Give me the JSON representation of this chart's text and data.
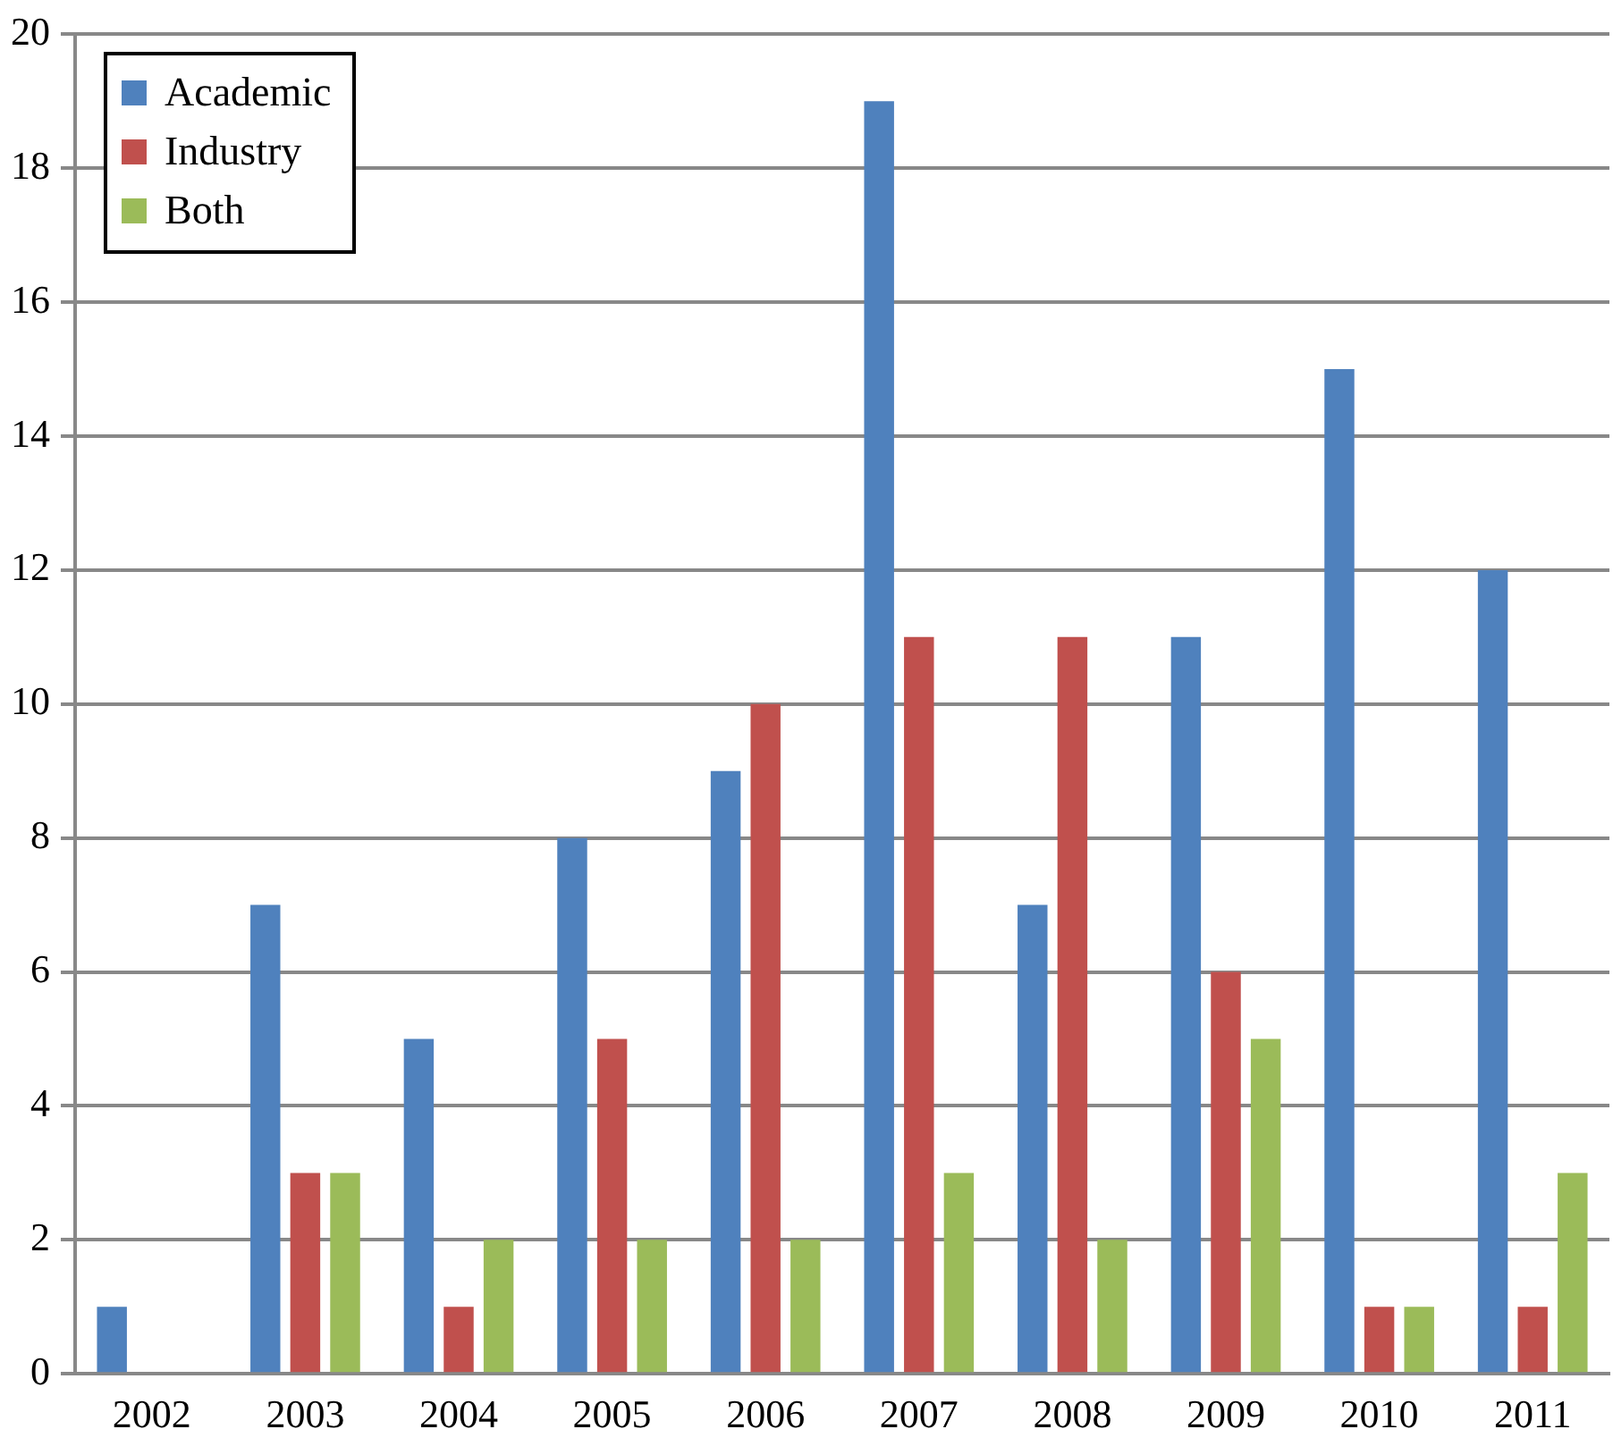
{
  "chart_data": {
    "type": "bar",
    "categories": [
      "2002",
      "2003",
      "2004",
      "2005",
      "2006",
      "2007",
      "2008",
      "2009",
      "2010",
      "2011"
    ],
    "series": [
      {
        "name": "Academic",
        "color": "#4f81bd",
        "values": [
          1,
          7,
          5,
          8,
          9,
          19,
          7,
          11,
          15,
          12
        ]
      },
      {
        "name": "Industry",
        "color": "#c0504d",
        "values": [
          0,
          3,
          1,
          5,
          10,
          11,
          11,
          6,
          1,
          1
        ]
      },
      {
        "name": "Both",
        "color": "#9bbb59",
        "values": [
          0,
          3,
          2,
          2,
          2,
          3,
          2,
          5,
          1,
          3
        ]
      }
    ],
    "ylim": [
      0,
      20
    ],
    "yticks": [
      0,
      2,
      4,
      6,
      8,
      10,
      12,
      14,
      16,
      18,
      20
    ],
    "grid": "y",
    "legend": "top left"
  }
}
